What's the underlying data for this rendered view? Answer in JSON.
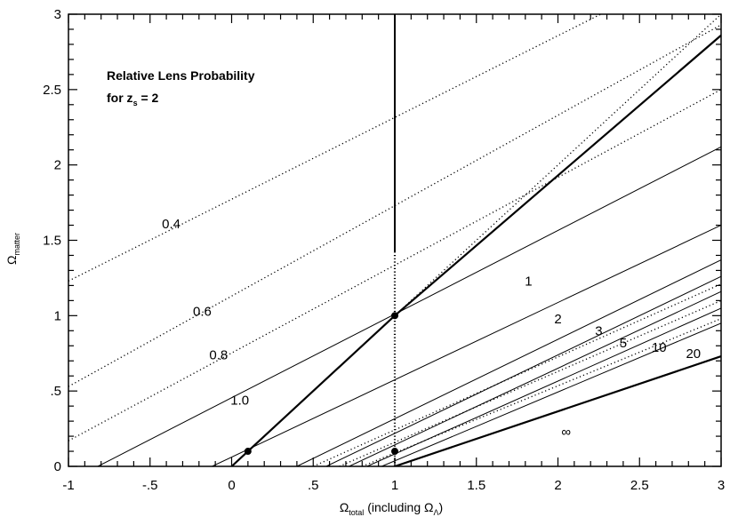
{
  "chart_data": {
    "type": "line",
    "title_line1": "Relative Lens Probability",
    "title_line2_prefix": "for z",
    "title_line2_sub": "s",
    "title_line2_suffix": " = 2",
    "xlabel_main": "Ω",
    "xlabel_sub": "total",
    "xlabel_rest": " (including Ω",
    "xlabel_lambda": "Λ",
    "xlabel_close": ")",
    "ylabel_main": "Ω",
    "ylabel_sub": "matter",
    "xlim": [
      -1,
      3
    ],
    "ylim": [
      0,
      3
    ],
    "x_ticks": [
      {
        "value": -1,
        "label": "-1"
      },
      {
        "value": -0.5,
        "label": "-.5"
      },
      {
        "value": 0,
        "label": "0"
      },
      {
        "value": 0.5,
        "label": ".5"
      },
      {
        "value": 1,
        "label": "1"
      },
      {
        "value": 1.5,
        "label": "1.5"
      },
      {
        "value": 2,
        "label": "2"
      },
      {
        "value": 2.5,
        "label": "2.5"
      },
      {
        "value": 3,
        "label": "3"
      }
    ],
    "y_ticks": [
      {
        "value": 0,
        "label": "0"
      },
      {
        "value": 0.5,
        "label": ".5"
      },
      {
        "value": 1,
        "label": "1"
      },
      {
        "value": 1.5,
        "label": "1.5"
      },
      {
        "value": 2,
        "label": "2"
      },
      {
        "value": 2.5,
        "label": "2.5"
      },
      {
        "value": 3,
        "label": "3"
      }
    ],
    "contours": [
      {
        "label": "0.4",
        "style": "dotted",
        "points": [
          [
            -1,
            1.23
          ],
          [
            3,
            3.4
          ]
        ],
        "label_at": [
          -0.37,
          1.58
        ]
      },
      {
        "label": "0.6",
        "style": "dotted",
        "points": [
          [
            -1,
            0.53
          ],
          [
            3,
            2.93
          ]
        ],
        "label_at": [
          -0.18,
          1.0
        ]
      },
      {
        "label": "0.8",
        "style": "dotted",
        "points": [
          [
            -1,
            0.17
          ],
          [
            3,
            2.5
          ]
        ],
        "label_at": [
          -0.08,
          0.71
        ]
      },
      {
        "label": "1.0",
        "style": "solid",
        "points": [
          [
            -0.82,
            0
          ],
          [
            3,
            2.12
          ]
        ],
        "label_at": [
          0.05,
          0.41
        ]
      },
      {
        "label": "1",
        "style": "solid",
        "points": [
          [
            -0.12,
            0
          ],
          [
            3,
            1.6
          ]
        ],
        "label_at": [
          1.82,
          1.2
        ]
      },
      {
        "label": "2",
        "style": "solid",
        "points": [
          [
            0.4,
            0
          ],
          [
            3,
            1.37
          ]
        ],
        "label_at": [
          2.0,
          0.95
        ]
      },
      {
        "label": "3",
        "style": "solid",
        "points": [
          [
            0.58,
            0
          ],
          [
            3,
            1.26
          ]
        ],
        "label_at": [
          2.25,
          0.87
        ]
      },
      {
        "label": "5",
        "style": "solid",
        "points": [
          [
            0.72,
            0
          ],
          [
            3,
            1.16
          ]
        ],
        "label_at": [
          2.4,
          0.79
        ]
      },
      {
        "label": "10",
        "style": "solid",
        "points": [
          [
            0.83,
            0
          ],
          [
            3,
            1.05
          ]
        ],
        "label_at": [
          2.62,
          0.76
        ]
      },
      {
        "label": "20",
        "style": "solid",
        "points": [
          [
            0.92,
            0
          ],
          [
            3,
            0.95
          ]
        ],
        "label_at": [
          2.83,
          0.72
        ]
      },
      {
        "label": "",
        "style": "dotted",
        "points": [
          [
            0.5,
            0
          ],
          [
            3,
            1.21
          ]
        ],
        "label_at": null
      },
      {
        "label": "",
        "style": "dotted",
        "points": [
          [
            0.66,
            0
          ],
          [
            3,
            1.1
          ]
        ],
        "label_at": null
      },
      {
        "label": "",
        "style": "dotted",
        "points": [
          [
            0.8,
            0
          ],
          [
            3,
            0.98
          ]
        ],
        "label_at": null
      },
      {
        "label": "∞",
        "style": "solid-thick",
        "points": [
          [
            1.0,
            0
          ],
          [
            3,
            0.73
          ]
        ],
        "label_at": [
          2.05,
          0.2
        ]
      }
    ],
    "flat_universe_line": {
      "points": [
        [
          0,
          0
        ],
        [
          1,
          1
        ],
        [
          3,
          2.86
        ]
      ],
      "style": "thick"
    },
    "flat_universe_dotted": {
      "points": [
        [
          1,
          1
        ],
        [
          3,
          3
        ]
      ],
      "style": "dotted"
    },
    "vertical_line": {
      "x": 1,
      "solid_from": 1.42,
      "solid_to": 3,
      "dotted_from": 0,
      "dotted_to": 1.42
    },
    "markers": [
      [
        0.1,
        0.1
      ],
      [
        1,
        1
      ],
      [
        1,
        0.1
      ]
    ]
  }
}
